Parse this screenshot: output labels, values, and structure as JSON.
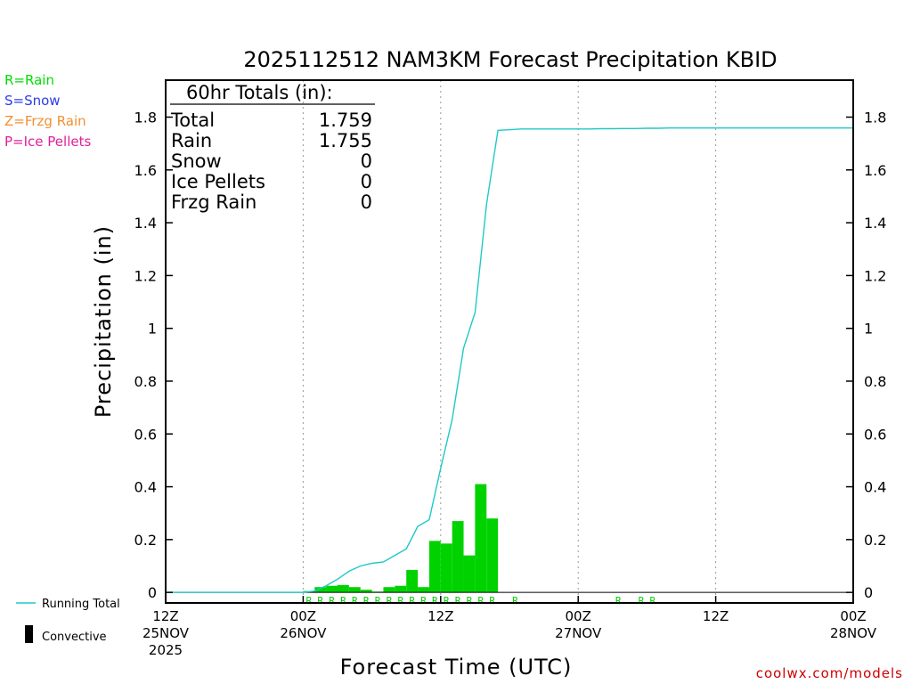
{
  "chart_data": {
    "type": "bar",
    "title": "2025112512 NAM3KM Forecast Precipitation KBID",
    "xlabel": "Forecast Time (UTC)",
    "ylabel": "Precipitation (in)",
    "ylim": [
      -0.04,
      1.94
    ],
    "xlim": [
      0,
      60
    ],
    "y_ticks": [
      0,
      0.2,
      0.4,
      0.6,
      0.8,
      1,
      1.2,
      1.4,
      1.6,
      1.8
    ],
    "y_tick_labels": [
      "0",
      "0.2",
      "0.4",
      "0.6",
      "0.8",
      "1",
      "1.2",
      "1.4",
      "1.6",
      "1.8"
    ],
    "x_ticks": [
      {
        "hour": 0,
        "label": "12Z",
        "date": "25NOV",
        "year": "2025"
      },
      {
        "hour": 12,
        "label": "00Z",
        "date": "26NOV",
        "year": ""
      },
      {
        "hour": 24,
        "label": "12Z",
        "date": "",
        "year": ""
      },
      {
        "hour": 36,
        "label": "00Z",
        "date": "27NOV",
        "year": ""
      },
      {
        "hour": 48,
        "label": "12Z",
        "date": "",
        "year": ""
      },
      {
        "hour": 60,
        "label": "00Z",
        "date": "28NOV",
        "year": ""
      }
    ],
    "grid": "vertical dotted at 00Z and 12Z",
    "series": [
      {
        "name": "Running Total",
        "kind": "line",
        "color": "#20c8c8",
        "x": [
          1,
          2,
          3,
          4,
          5,
          6,
          7,
          8,
          9,
          10,
          11,
          12,
          13,
          14,
          15,
          16,
          17,
          18,
          19,
          20,
          21,
          22,
          23,
          24,
          25,
          26,
          27,
          28,
          29,
          30,
          31,
          32,
          33,
          34,
          35,
          36,
          37,
          38,
          39,
          40,
          41,
          42,
          43,
          44,
          45,
          46,
          47,
          48,
          49,
          50,
          51,
          52,
          53,
          54,
          55,
          56,
          57,
          58,
          59,
          60
        ],
        "values": [
          0,
          0,
          0,
          0,
          0,
          0,
          0,
          0,
          0,
          0,
          0,
          0,
          0.005,
          0.025,
          0.05,
          0.08,
          0.1,
          0.11,
          0.115,
          0.14,
          0.165,
          0.25,
          0.275,
          0.47,
          0.655,
          0.925,
          1.06,
          1.47,
          1.75,
          1.752,
          1.755,
          1.755,
          1.755,
          1.755,
          1.755,
          1.755,
          1.755,
          1.756,
          1.756,
          1.757,
          1.757,
          1.758,
          1.758,
          1.759,
          1.759,
          1.759,
          1.759,
          1.759,
          1.759,
          1.759,
          1.759,
          1.759,
          1.759,
          1.759,
          1.759,
          1.759,
          1.759,
          1.759,
          1.759,
          1.759
        ]
      },
      {
        "name": "Convective",
        "kind": "bar",
        "color": "#000000",
        "x": [],
        "values": []
      },
      {
        "name": "Rain",
        "kind": "bar",
        "color": "#00d200",
        "x": [
          13,
          14,
          15,
          16,
          17,
          18,
          19,
          20,
          21,
          22,
          23,
          24,
          25,
          26,
          27,
          28,
          29
        ],
        "values": [
          0.005,
          0.02,
          0.025,
          0.028,
          0.02,
          0.01,
          0.003,
          0.02,
          0.025,
          0.085,
          0.02,
          0.195,
          0.185,
          0.27,
          0.14,
          0.41,
          0.28
        ]
      }
    ],
    "ptype_marks": {
      "color": "#00cc00",
      "symbol": "R",
      "hours": [
        13,
        14,
        15,
        16,
        17,
        18,
        19,
        20,
        21,
        22,
        23,
        24,
        25,
        26,
        27,
        28,
        29,
        31,
        40,
        42,
        43
      ]
    }
  },
  "ptype_legend": [
    {
      "text": "R=Rain",
      "color": "#00dd00"
    },
    {
      "text": "S=Snow",
      "color": "#2b3cf0"
    },
    {
      "text": "Z=Frzg Rain",
      "color": "#f09030"
    },
    {
      "text": "P=Ice Pellets",
      "color": "#e0209a"
    }
  ],
  "totals": {
    "header": "60hr Totals (in):",
    "rows": [
      {
        "label": "Total",
        "value": "1.759"
      },
      {
        "label": "Rain",
        "value": "1.755"
      },
      {
        "label": "Snow",
        "value": "0"
      },
      {
        "label": "Ice Pellets",
        "value": "0"
      },
      {
        "label": "Frzg Rain",
        "value": "0"
      }
    ]
  },
  "legend": {
    "running_total": "Running Total",
    "convective": "Convective"
  },
  "credit": "coolwx.com/models"
}
